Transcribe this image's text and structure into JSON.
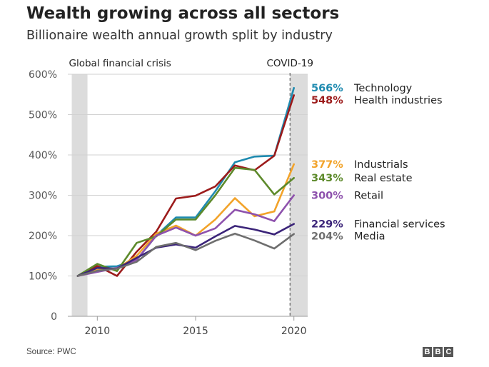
{
  "header": {
    "title": "Wealth growing across all sectors",
    "subtitle": "Billionaire wealth annual growth split by industry"
  },
  "footer": {
    "source": "Source: PWC",
    "logo_letters": [
      "B",
      "B",
      "C"
    ]
  },
  "chart_data": {
    "type": "line",
    "title": "Wealth growing across all sectors",
    "subtitle": "Billionaire wealth annual growth split by industry",
    "xlabel": "",
    "ylabel": "",
    "xlim": [
      2008.5,
      2020.7
    ],
    "ylim": [
      0,
      600
    ],
    "x_ticks": [
      2010,
      2015,
      2020
    ],
    "y_ticks": [
      {
        "value": 0,
        "label": "0"
      },
      {
        "value": 100,
        "label": "100%"
      },
      {
        "value": 200,
        "label": "200%"
      },
      {
        "value": 300,
        "label": "300%"
      },
      {
        "value": 400,
        "label": "400%"
      },
      {
        "value": 500,
        "label": "500%"
      },
      {
        "value": 600,
        "label": "600%"
      }
    ],
    "grid": "horizontal",
    "shaded_regions": [
      {
        "label": "Global financial crisis",
        "from": 2008.7,
        "to": 2009.5
      },
      {
        "label": "COVID-19",
        "from": 2019.8,
        "to": 2020.7
      }
    ],
    "covid_marker_year": 2019.8,
    "x": [
      2009,
      2010,
      2011,
      2012,
      2013,
      2014,
      2015,
      2016,
      2017,
      2018,
      2019,
      2020
    ],
    "series": [
      {
        "name": "Technology",
        "end_label": "566%",
        "color": "#1f8bb0",
        "values": [
          100,
          123,
          124,
          140,
          200,
          245,
          245,
          310,
          382,
          396,
          398,
          566
        ]
      },
      {
        "name": "Health industries",
        "end_label": "548%",
        "color": "#9c1b1b",
        "values": [
          100,
          125,
          100,
          160,
          210,
          292,
          299,
          322,
          374,
          362,
          398,
          548
        ]
      },
      {
        "name": "Industrials",
        "end_label": "377%",
        "color": "#f2a32a",
        "values": [
          100,
          115,
          118,
          150,
          205,
          225,
          200,
          240,
          293,
          248,
          260,
          377
        ]
      },
      {
        "name": "Real estate",
        "end_label": "343%",
        "color": "#5d8a2b",
        "values": [
          100,
          130,
          112,
          182,
          198,
          240,
          240,
          300,
          368,
          363,
          302,
          343
        ]
      },
      {
        "name": "Retail",
        "end_label": "300%",
        "color": "#8e52ad",
        "values": [
          100,
          110,
          120,
          140,
          200,
          220,
          200,
          218,
          264,
          253,
          236,
          300
        ]
      },
      {
        "name": "Financial services",
        "end_label": "229%",
        "color": "#3b2479",
        "values": [
          100,
          120,
          118,
          145,
          170,
          178,
          170,
          198,
          224,
          215,
          203,
          229
        ]
      },
      {
        "name": "Media",
        "end_label": "204%",
        "color": "#6e6e6e",
        "values": [
          100,
          113,
          118,
          135,
          172,
          182,
          164,
          187,
          205,
          188,
          168,
          204
        ]
      }
    ]
  }
}
